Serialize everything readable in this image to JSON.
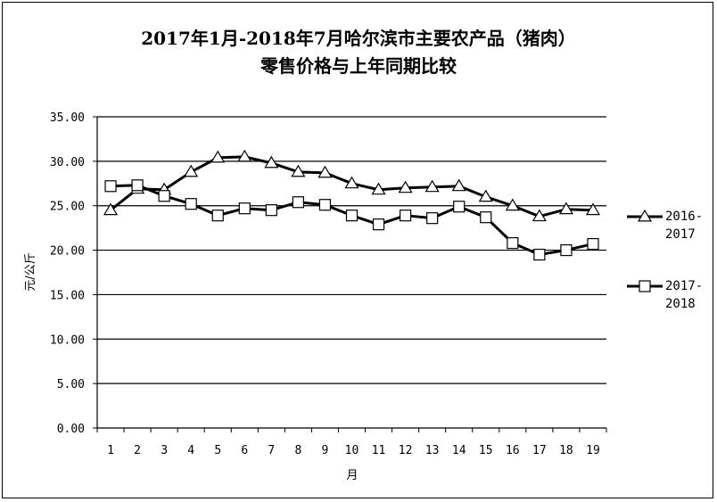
{
  "chart_data": {
    "type": "line",
    "title_line1": "2017年1月-2018年7月哈尔滨市主要农产品（猪肉）",
    "title_line2": "零售价格与上年同期比较",
    "xlabel": "月",
    "ylabel": "元/公斤",
    "ylim": [
      0,
      35
    ],
    "y_ticks": [
      "0.00",
      "5.00",
      "10.00",
      "15.00",
      "20.00",
      "25.00",
      "30.00",
      "35.00"
    ],
    "y_tick_values": [
      0,
      5,
      10,
      15,
      20,
      25,
      30,
      35
    ],
    "x": [
      "1",
      "2",
      "3",
      "4",
      "5",
      "6",
      "7",
      "8",
      "9",
      "10",
      "11",
      "12",
      "13",
      "14",
      "15",
      "16",
      "17",
      "18",
      "19"
    ],
    "grid": true,
    "legend_position": "right",
    "series": [
      {
        "name": "2016-2017",
        "legend_line1": "2016-",
        "legend_line2": "2017",
        "marker": "triangle",
        "color": "#000000",
        "values": [
          24.5,
          26.9,
          26.8,
          28.8,
          30.4,
          30.5,
          29.8,
          28.8,
          28.7,
          27.5,
          26.8,
          27.0,
          27.1,
          27.2,
          26.0,
          25.0,
          23.8,
          24.6,
          24.5
        ]
      },
      {
        "name": "2017-2018",
        "legend_line1": "2017-",
        "legend_line2": "2018",
        "marker": "square",
        "color": "#000000",
        "values": [
          27.2,
          27.3,
          26.1,
          25.2,
          23.9,
          24.7,
          24.5,
          25.4,
          25.1,
          23.9,
          22.9,
          23.9,
          23.6,
          24.9,
          23.7,
          20.8,
          19.5,
          20.0,
          20.7
        ]
      }
    ]
  }
}
